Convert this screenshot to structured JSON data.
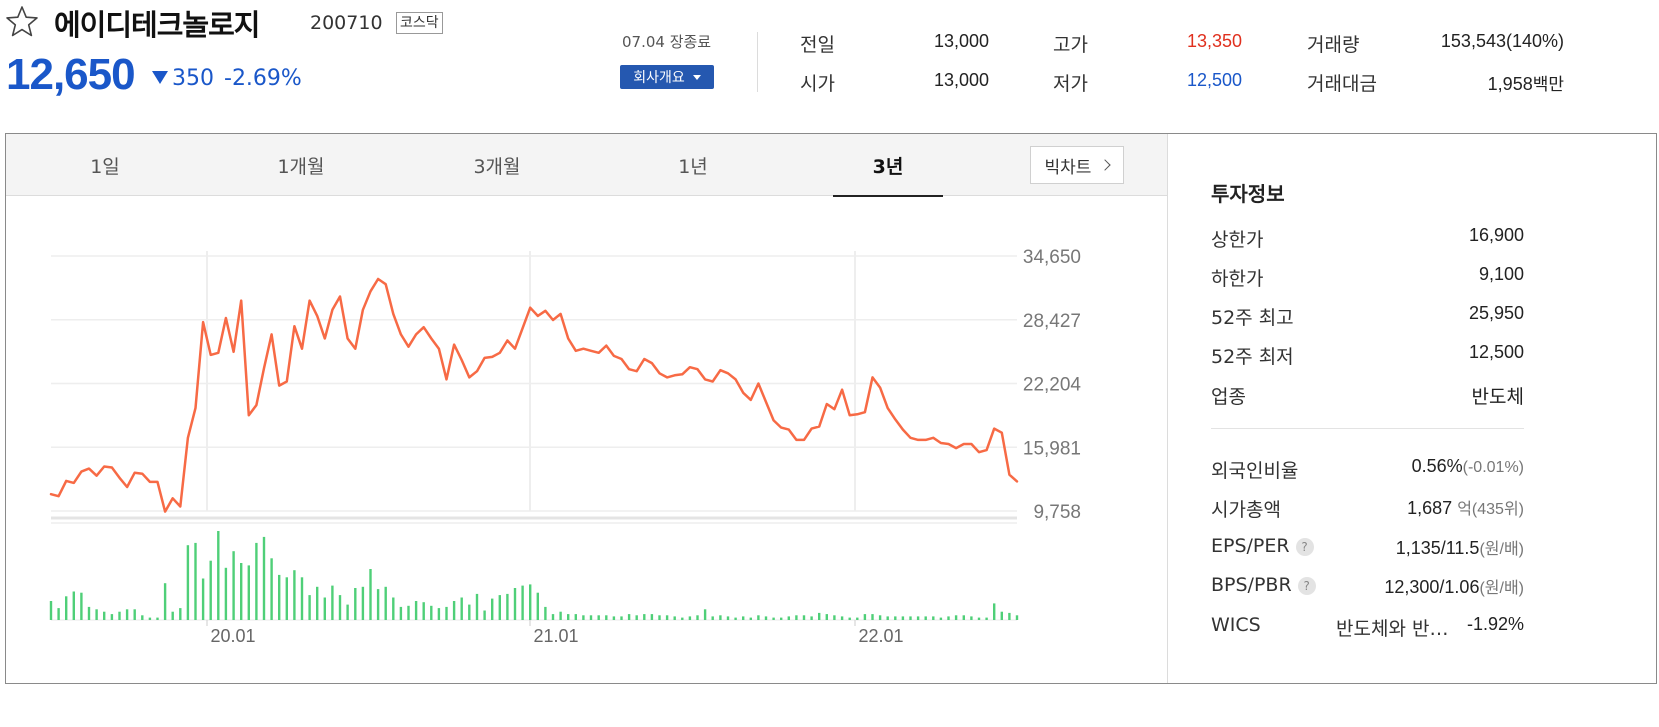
{
  "header": {
    "name": "에이디테크놀로지",
    "code": "200710",
    "market": "코스닥",
    "price": "12,650",
    "change": "350",
    "change_rate": "-2.69%",
    "close_date": "07.04 장종료",
    "company_button": "회사개요",
    "quote": {
      "prev_label": "전일",
      "prev": "13,000",
      "open_label": "시가",
      "open": "13,000",
      "high_label": "고가",
      "high": "13,350",
      "low_label": "저가",
      "low": "12,500",
      "volume_label": "거래량",
      "volume": "153,543(140%)",
      "amount_label": "거래대금",
      "amount": "1,958",
      "amount_unit": "백만"
    },
    "colors": {
      "up": "#e0301e",
      "down": "#1a57c9"
    }
  },
  "tabs": [
    {
      "label": "1일"
    },
    {
      "label": "1개월"
    },
    {
      "label": "3개월"
    },
    {
      "label": "1년"
    },
    {
      "label": "3년",
      "active": true
    }
  ],
  "bigchart_label": "빅차트",
  "chart_data": {
    "type": "line",
    "period": "3년",
    "y_ticks": [
      "34,650",
      "28,427",
      "22,204",
      "15,981",
      "9,758"
    ],
    "x_ticks": [
      "20.01",
      "21.01",
      "22.01"
    ],
    "ylim": [
      9758,
      34650
    ],
    "line_color": "#f76a45",
    "volume_color": "#4fcf78",
    "price_series": [
      11400,
      11200,
      12700,
      12500,
      13600,
      13900,
      13200,
      14100,
      14000,
      13000,
      12100,
      13500,
      13400,
      12600,
      12600,
      9700,
      11000,
      10200,
      16900,
      19800,
      28200,
      25000,
      25200,
      28600,
      25300,
      30300,
      19100,
      20100,
      23700,
      27000,
      22000,
      22400,
      27800,
      25600,
      30300,
      28800,
      26600,
      29400,
      30700,
      26600,
      25600,
      29400,
      31200,
      32400,
      31900,
      29000,
      27000,
      25800,
      27000,
      27700,
      26600,
      25600,
      22600,
      26000,
      24500,
      22800,
      23400,
      24700,
      24800,
      25200,
      26400,
      25600,
      27600,
      29600,
      28800,
      29300,
      28400,
      29000,
      26600,
      25400,
      25600,
      25400,
      25200,
      25900,
      24900,
      24600,
      23600,
      23400,
      24600,
      24200,
      23200,
      22800,
      23000,
      23100,
      23800,
      23600,
      22600,
      22400,
      23500,
      23200,
      22600,
      21300,
      20600,
      22200,
      20400,
      18600,
      17900,
      17700,
      16700,
      16700,
      17800,
      18000,
      20200,
      19700,
      21600,
      19100,
      19200,
      19400,
      22800,
      21800,
      19800,
      18700,
      17700,
      16900,
      16700,
      16700,
      16900,
      16400,
      16300,
      15900,
      16300,
      16300,
      15500,
      15700,
      17800,
      17400,
      13300,
      12650
    ],
    "volume_series": [
      16,
      10,
      20,
      24,
      23,
      11,
      9,
      7,
      5,
      7,
      9,
      9,
      4,
      2,
      2,
      31,
      7,
      10,
      63,
      65,
      35,
      50,
      75,
      44,
      58,
      48,
      46,
      65,
      70,
      52,
      38,
      36,
      42,
      36,
      21,
      28,
      19,
      29,
      21,
      13,
      27,
      28,
      43,
      26,
      28,
      19,
      11,
      12,
      16,
      15,
      12,
      10,
      11,
      16,
      19,
      13,
      22,
      8,
      18,
      21,
      22,
      27,
      29,
      30,
      23,
      11,
      5,
      7,
      5,
      5,
      4,
      4,
      4,
      4,
      3,
      3,
      5,
      4,
      5,
      5,
      4,
      4,
      3,
      2,
      3,
      4,
      9,
      3,
      4,
      3,
      2,
      3,
      2,
      4,
      3,
      2,
      2,
      3,
      4,
      4,
      3,
      6,
      5,
      4,
      3,
      2,
      2,
      5,
      5,
      4,
      3,
      3,
      3,
      3,
      3,
      3,
      3,
      2,
      3,
      4,
      4,
      3,
      2,
      2,
      14,
      7,
      6,
      4
    ]
  },
  "info": {
    "title": "투자정보",
    "upper_label": "상한가",
    "upper": "16,900",
    "lower_label": "하한가",
    "lower": "9,100",
    "high52_label": "52주 최고",
    "high52": "25,950",
    "low52_label": "52주 최저",
    "low52": "12,500",
    "sector_label": "업종",
    "sector": "반도체",
    "foreign_label": "외국인비율",
    "foreign": "0.56%",
    "foreign_change": "(-0.01%)",
    "mcap_label": "시가총액",
    "mcap": "1,687",
    "mcap_unit": "억(435위)",
    "eps_label": "EPS/PER",
    "eps": "1,135/11.5",
    "eps_unit": "(원/배)",
    "bps_label": "BPS/PBR",
    "bps": "12,300/1.06",
    "bps_unit": "(원/배)",
    "wics_label": "WICS",
    "wics_text": "반도체와 반…",
    "wics_rate": "-1.92%"
  }
}
